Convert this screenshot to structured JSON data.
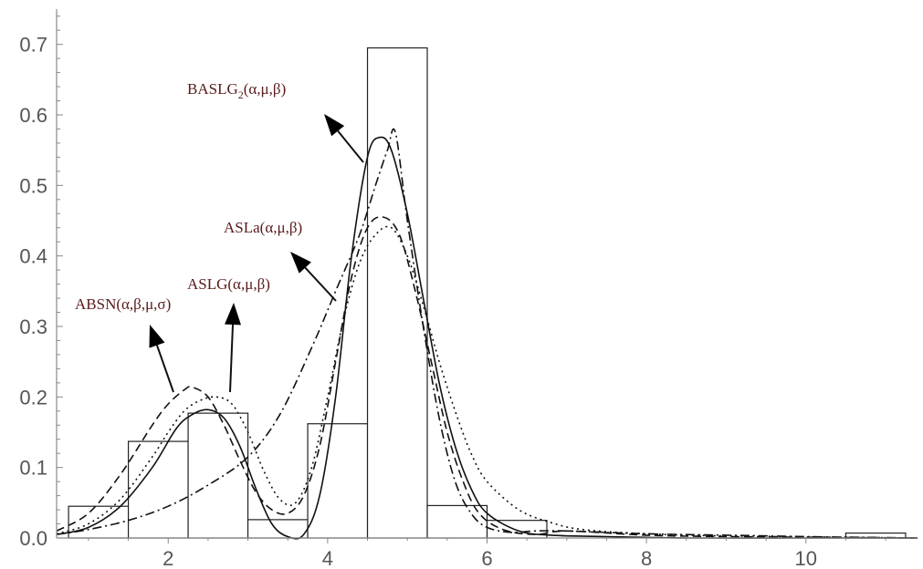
{
  "chart_data": {
    "type": "bar",
    "subtype": "histogram with fitted density curves",
    "xlim": [
      0.6,
      11.4
    ],
    "ylim": [
      0,
      0.75
    ],
    "x_ticks": [
      2,
      4,
      6,
      8,
      10
    ],
    "x_tick_labels": [
      "2",
      "4",
      "6",
      "8",
      "10"
    ],
    "y_ticks": [
      0,
      0.1,
      0.2,
      0.3,
      0.4,
      0.5,
      0.6,
      0.7
    ],
    "y_tick_labels": [
      "0.0",
      "0.1",
      "0.2",
      "0.3",
      "0.4",
      "0.5",
      "0.6",
      "0.7"
    ],
    "grid": false,
    "histogram": [
      {
        "x0": 0.75,
        "x1": 1.5,
        "value": 0.045
      },
      {
        "x0": 1.5,
        "x1": 2.25,
        "value": 0.137
      },
      {
        "x0": 2.25,
        "x1": 3.0,
        "value": 0.177
      },
      {
        "x0": 3.0,
        "x1": 3.75,
        "value": 0.026
      },
      {
        "x0": 3.75,
        "x1": 4.5,
        "value": 0.162
      },
      {
        "x0": 4.5,
        "x1": 5.25,
        "value": 0.695
      },
      {
        "x0": 5.25,
        "x1": 6.0,
        "value": 0.046
      },
      {
        "x0": 6.0,
        "x1": 6.75,
        "value": 0.025
      },
      {
        "x0": 10.5,
        "x1": 11.25,
        "value": 0.007
      }
    ],
    "series": [
      {
        "name": "BASLG2(α,μ,β)",
        "dash": "solid",
        "x": [
          0.6,
          1.0,
          1.4,
          1.8,
          2.1,
          2.3,
          2.5,
          2.7,
          2.9,
          3.1,
          3.3,
          3.5,
          3.7,
          3.9,
          4.1,
          4.3,
          4.5,
          4.65,
          4.8,
          5.0,
          5.2,
          5.4,
          5.6,
          5.8,
          6.0,
          6.4,
          6.8,
          7.5,
          8.5,
          10.0,
          11.4
        ],
        "y": [
          0.005,
          0.015,
          0.045,
          0.1,
          0.155,
          0.175,
          0.182,
          0.17,
          0.13,
          0.07,
          0.02,
          0.002,
          0.005,
          0.06,
          0.2,
          0.4,
          0.54,
          0.568,
          0.55,
          0.46,
          0.34,
          0.22,
          0.13,
          0.07,
          0.035,
          0.01,
          0.004,
          0.002,
          0.0,
          0.0,
          0.0
        ]
      },
      {
        "name": "ABSN(α,β,μ,σ)",
        "dash": "dashed",
        "x": [
          0.6,
          1.0,
          1.4,
          1.8,
          2.0,
          2.2,
          2.3,
          2.5,
          2.7,
          2.9,
          3.1,
          3.3,
          3.5,
          3.7,
          3.9,
          4.1,
          4.3,
          4.5,
          4.7,
          4.9,
          5.1,
          5.3,
          5.5,
          5.7,
          5.9,
          6.2,
          6.6,
          7.0,
          8.0,
          9.0,
          11.4
        ],
        "y": [
          0.01,
          0.035,
          0.09,
          0.16,
          0.19,
          0.21,
          0.214,
          0.2,
          0.16,
          0.11,
          0.065,
          0.04,
          0.035,
          0.06,
          0.13,
          0.25,
          0.37,
          0.44,
          0.455,
          0.43,
          0.35,
          0.25,
          0.15,
          0.08,
          0.035,
          0.012,
          0.005,
          0.01,
          0.004,
          0.002,
          0.0
        ]
      },
      {
        "name": "ASLa(α,μ,β)",
        "dash": "dashdot",
        "x": [
          0.6,
          1.0,
          1.5,
          2.0,
          2.5,
          3.0,
          3.4,
          3.8,
          4.1,
          4.4,
          4.6,
          4.75,
          4.85,
          5.0,
          5.2,
          5.4,
          5.6,
          5.8,
          6.0,
          6.3,
          6.6,
          7.0,
          8.0,
          9.0,
          10.0,
          11.4
        ],
        "y": [
          0.005,
          0.012,
          0.025,
          0.045,
          0.075,
          0.115,
          0.175,
          0.27,
          0.35,
          0.43,
          0.5,
          0.55,
          0.575,
          0.45,
          0.3,
          0.17,
          0.08,
          0.035,
          0.015,
          0.008,
          0.01,
          0.01,
          0.006,
          0.004,
          0.002,
          0.0
        ]
      },
      {
        "name": "ASLG(α,μ,β)",
        "dash": "dotted",
        "x": [
          0.6,
          1.0,
          1.4,
          1.8,
          2.0,
          2.2,
          2.4,
          2.6,
          2.8,
          3.0,
          3.2,
          3.4,
          3.6,
          3.8,
          4.0,
          4.2,
          4.4,
          4.6,
          4.8,
          5.0,
          5.2,
          5.4,
          5.6,
          5.8,
          6.0,
          6.4,
          6.8,
          7.2,
          8.0,
          9.0,
          11.4
        ],
        "y": [
          0.006,
          0.02,
          0.055,
          0.115,
          0.15,
          0.18,
          0.195,
          0.2,
          0.19,
          0.15,
          0.095,
          0.055,
          0.05,
          0.1,
          0.2,
          0.31,
          0.39,
          0.43,
          0.44,
          0.4,
          0.33,
          0.25,
          0.18,
          0.12,
          0.08,
          0.04,
          0.022,
          0.012,
          0.006,
          0.003,
          0.0
        ]
      }
    ],
    "annotations": [
      {
        "text_main": "BASLG",
        "text_sub": "2",
        "text_tail": "(α,μ,β)"
      },
      {
        "text_main": "ASLa(α,μ,β)",
        "text_sub": "",
        "text_tail": ""
      },
      {
        "text_main": "ASLG(α,μ,β)",
        "text_sub": "",
        "text_tail": ""
      },
      {
        "text_main": "ABSN(α,β,μ,σ)",
        "text_sub": "",
        "text_tail": ""
      }
    ]
  }
}
